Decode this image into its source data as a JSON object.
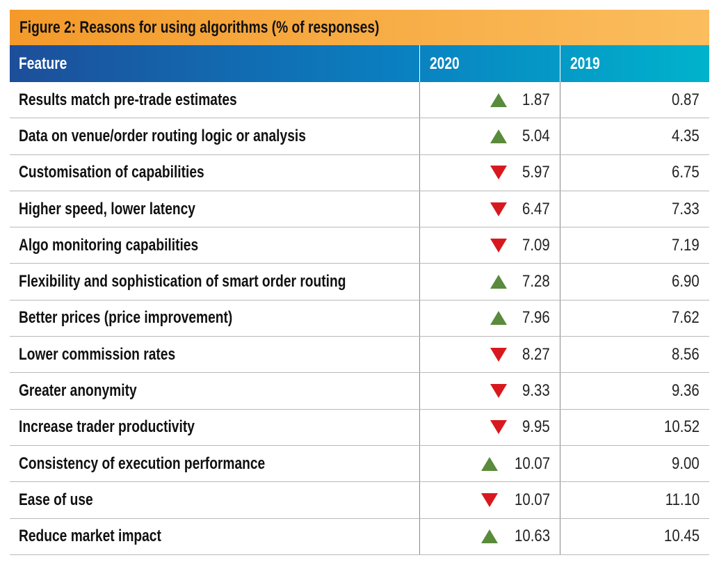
{
  "header": {
    "title": "Figure 2: Reasons for using algorithms (% of responses)"
  },
  "table": {
    "columns": [
      "Feature",
      "2020",
      "2019"
    ],
    "rows": [
      {
        "feature": "Results match pre-trade estimates",
        "trend": "up",
        "v2020": "1.87",
        "v2019": "0.87"
      },
      {
        "feature": "Data on venue/order routing logic or analysis",
        "trend": "up",
        "v2020": "5.04",
        "v2019": "4.35"
      },
      {
        "feature": "Customisation of capabilities",
        "trend": "down",
        "v2020": "5.97",
        "v2019": "6.75"
      },
      {
        "feature": "Higher speed, lower latency",
        "trend": "down",
        "v2020": "6.47",
        "v2019": "7.33"
      },
      {
        "feature": "Algo monitoring capabilities",
        "trend": "down",
        "v2020": "7.09",
        "v2019": "7.19"
      },
      {
        "feature": "Flexibility and sophistication of smart order routing",
        "trend": "up",
        "v2020": "7.28",
        "v2019": "6.90"
      },
      {
        "feature": "Better prices (price improvement)",
        "trend": "up",
        "v2020": "7.96",
        "v2019": "7.62"
      },
      {
        "feature": "Lower commission rates",
        "trend": "down",
        "v2020": "8.27",
        "v2019": "8.56"
      },
      {
        "feature": "Greater anonymity",
        "trend": "down",
        "v2020": "9.33",
        "v2019": "9.36"
      },
      {
        "feature": "Increase trader productivity",
        "trend": "down",
        "v2020": "9.95",
        "v2019": "10.52"
      },
      {
        "feature": "Consistency of execution performance",
        "trend": "up",
        "v2020": "10.07",
        "v2019": "9.00"
      },
      {
        "feature": "Ease of use",
        "trend": "down",
        "v2020": "10.07",
        "v2019": "11.10"
      },
      {
        "feature": "Reduce market impact",
        "trend": "up",
        "v2020": "10.63",
        "v2019": "10.45"
      }
    ],
    "colors": {
      "up": "#5a8a3c",
      "down": "#d7191f"
    }
  }
}
